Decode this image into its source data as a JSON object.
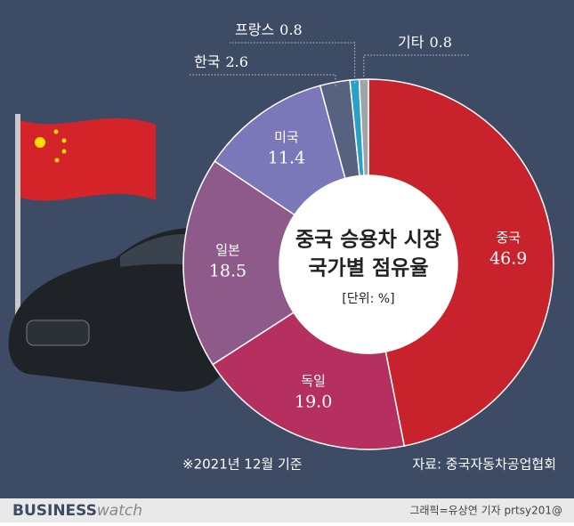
{
  "chart_data": {
    "type": "donut",
    "title": [
      "중국 승용차 시장",
      "국가별 점유율"
    ],
    "unit_note": "[단위: %]",
    "categories": [
      "중국",
      "독일",
      "일본",
      "미국",
      "한국",
      "프랑스",
      "기타"
    ],
    "values": [
      46.9,
      19.0,
      18.5,
      11.4,
      2.6,
      0.8,
      0.8
    ],
    "value_labels": [
      "46.9",
      "19.0",
      "18.5",
      "11.4",
      "2.6",
      "0.8",
      "0.8"
    ],
    "colors": [
      "#c8232c",
      "#b5305e",
      "#8e5a8a",
      "#7a78b8",
      "#56627f",
      "#2aa0c9",
      "#9ea3a8"
    ]
  },
  "footnote": "※2021년 12월 기준",
  "source": "자료: 중국자동차공업협회",
  "logo": {
    "bold": "BUSINESS",
    "light": "watch"
  },
  "credit": "그래픽=유상연 기자 prtsy201@"
}
